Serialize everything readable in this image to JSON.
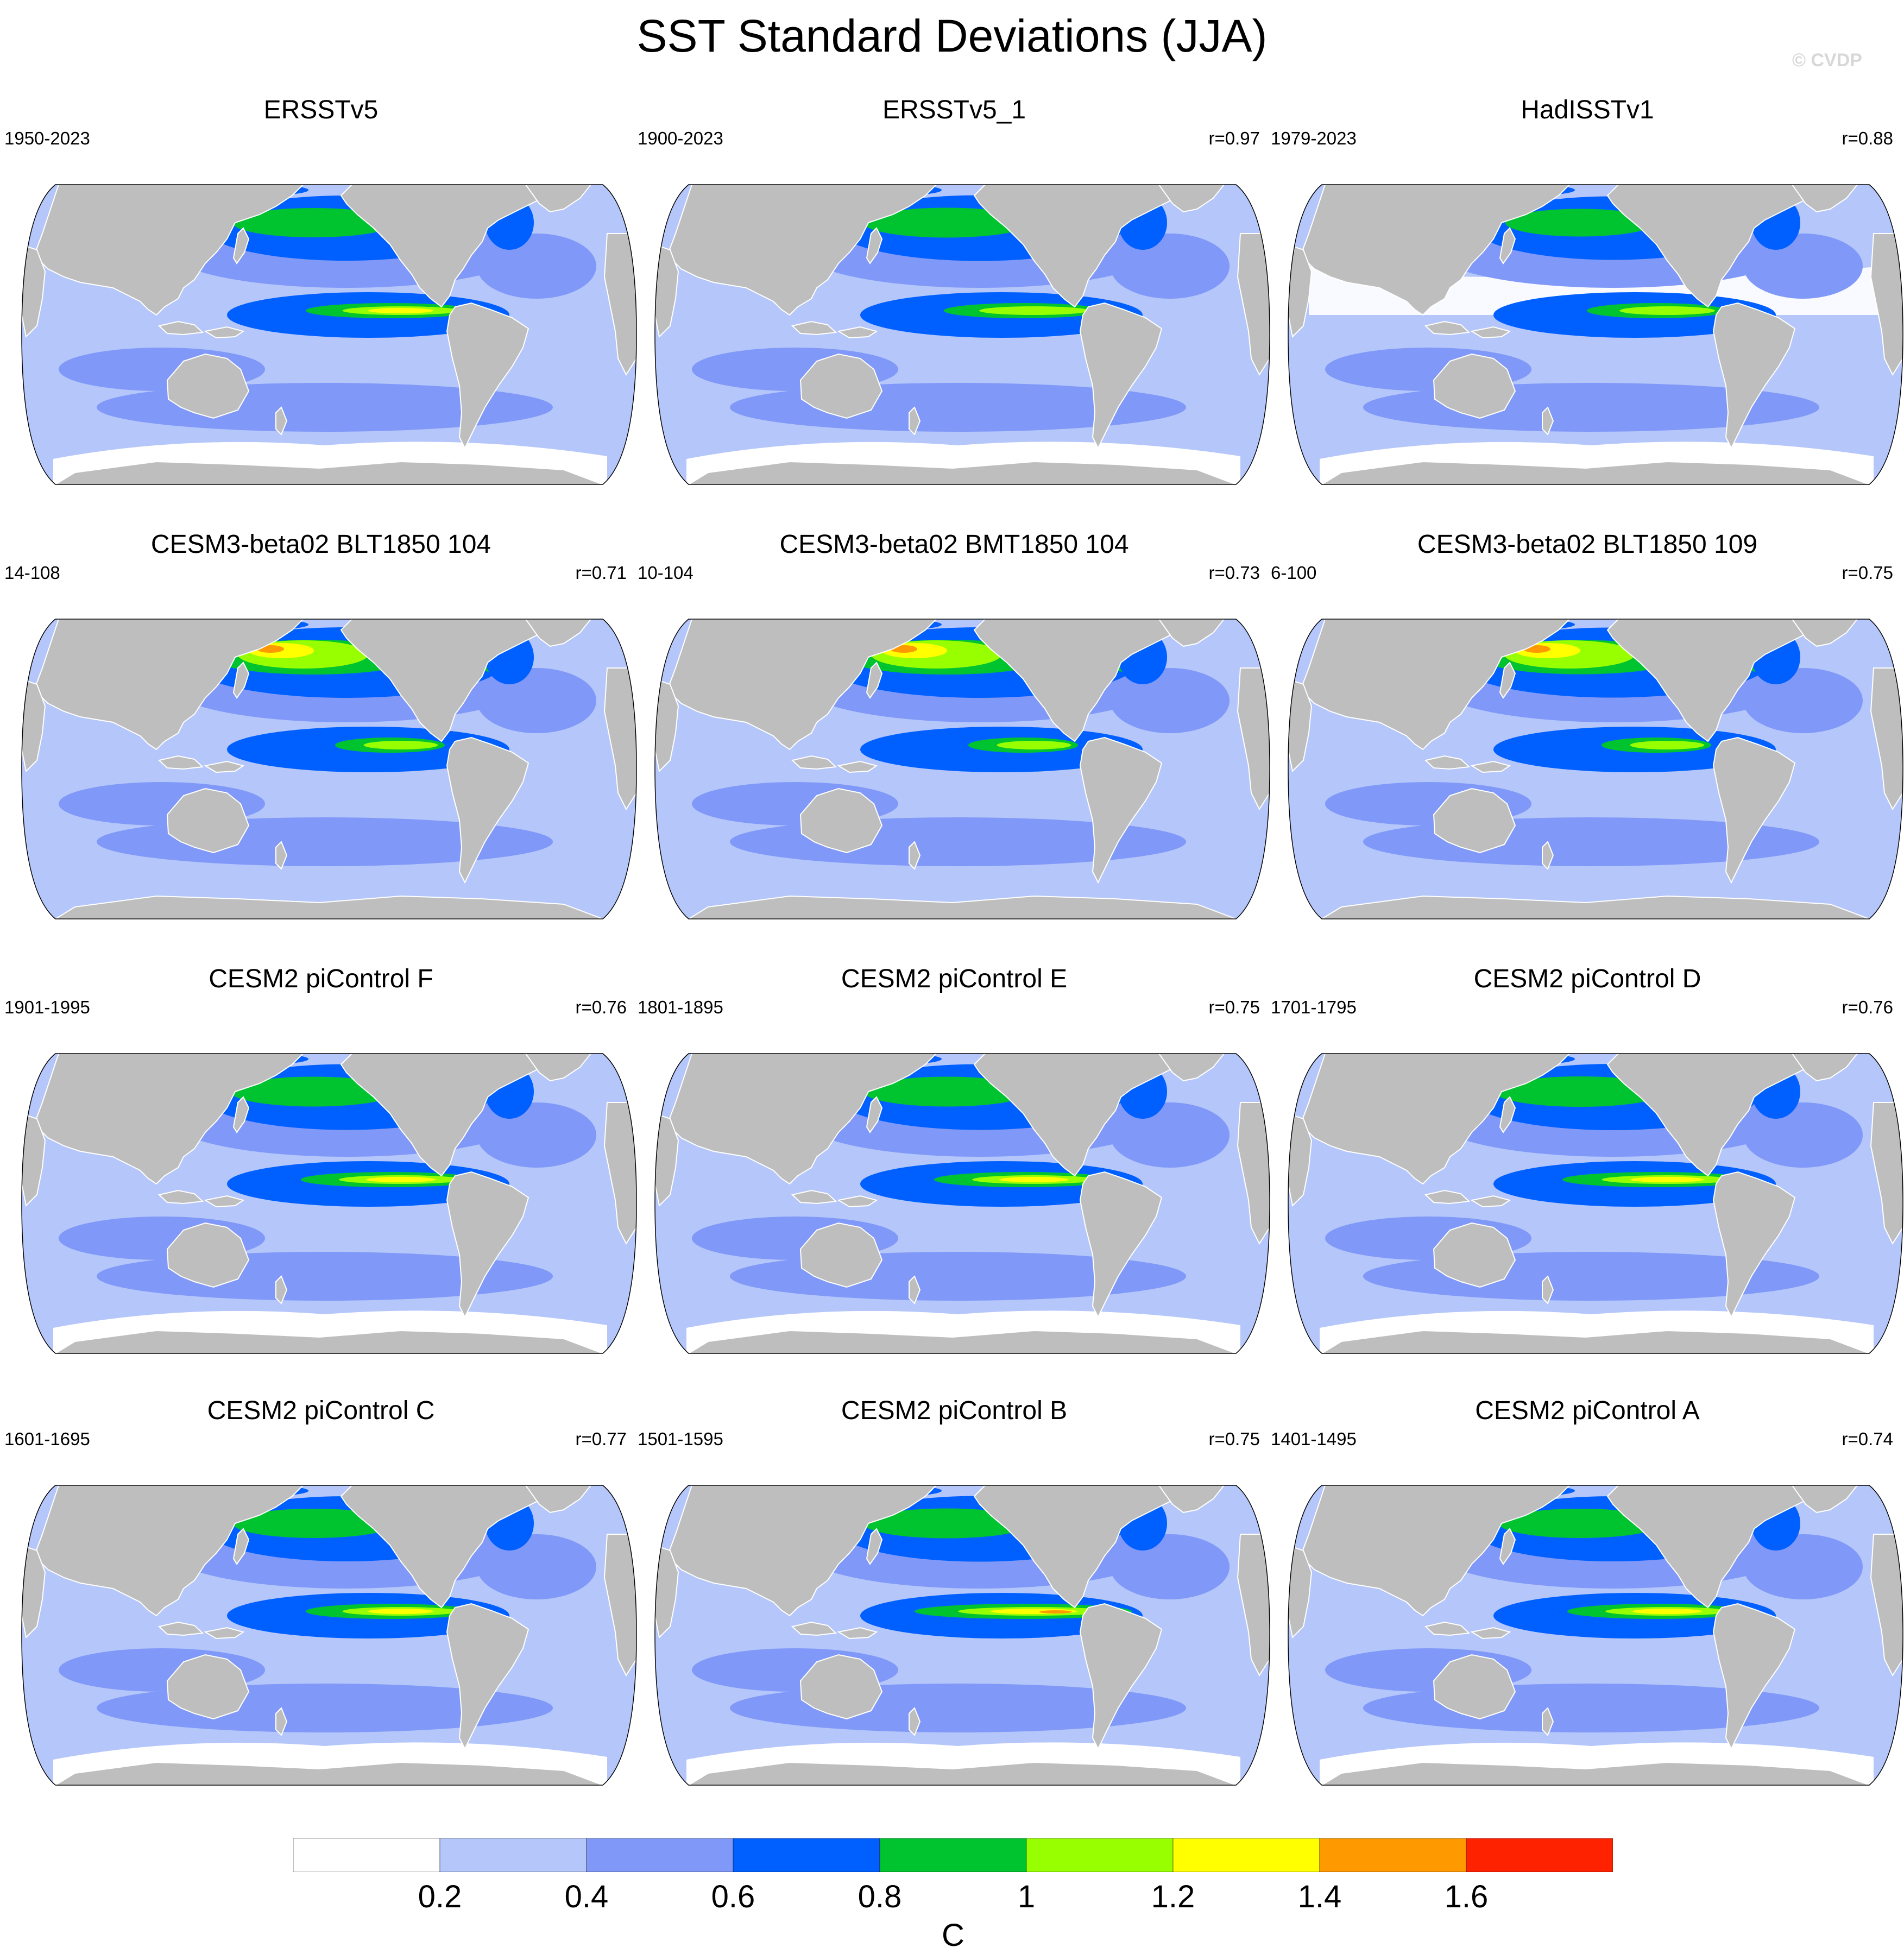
{
  "title": "SST Standard Deviations (JJA)",
  "watermark": "© CVDP",
  "colors": {
    "land": "#bebebe",
    "levels": [
      "#ffffff",
      "#b4c6fa",
      "#8098f8",
      "#0060ff",
      "#00c330",
      "#98ff00",
      "#ffff00",
      "#ff9900",
      "#ff2200"
    ]
  },
  "legend": {
    "ticks": [
      "0.2",
      "0.4",
      "0.6",
      "0.8",
      "1",
      "1.2",
      "1.4",
      "1.6"
    ],
    "unit": "C"
  },
  "panels": [
    {
      "title": "ERSSTv5",
      "period": "1950-2023",
      "r": "",
      "kind": "obs",
      "enso": 0.75,
      "npac": 0.5
    },
    {
      "title": "ERSSTv5_1",
      "period": "1900-2023",
      "r": "r=0.97",
      "kind": "obs",
      "enso": 0.7,
      "npac": 0.55
    },
    {
      "title": "HadISSTv1",
      "period": "1979-2023",
      "r": "r=0.88",
      "kind": "had",
      "enso": 0.6,
      "npac": 0.35
    },
    {
      "title": "CESM3-beta02 BLT1850 104",
      "period": "14-108",
      "r": "r=0.71",
      "kind": "cesm3",
      "enso": 0.45,
      "npac": 1.0
    },
    {
      "title": "CESM3-beta02 BMT1850 104",
      "period": "10-104",
      "r": "r=0.73",
      "kind": "cesm3",
      "enso": 0.45,
      "npac": 1.0
    },
    {
      "title": "CESM3-beta02 BLT1850 109",
      "period": "6-100",
      "r": "r=0.75",
      "kind": "cesm3",
      "enso": 0.45,
      "npac": 0.95
    },
    {
      "title": "CESM2 piControl F",
      "period": "1901-1995",
      "r": "r=0.76",
      "kind": "cesm2",
      "enso": 0.8,
      "npac": 0.55
    },
    {
      "title": "CESM2 piControl E",
      "period": "1801-1895",
      "r": "r=0.75",
      "kind": "cesm2",
      "enso": 0.8,
      "npac": 0.55
    },
    {
      "title": "CESM2 piControl D",
      "period": "1701-1795",
      "r": "r=0.76",
      "kind": "cesm2",
      "enso": 0.85,
      "npac": 0.6
    },
    {
      "title": "CESM2 piControl C",
      "period": "1601-1695",
      "r": "r=0.77",
      "kind": "cesm2",
      "enso": 0.75,
      "npac": 0.5
    },
    {
      "title": "CESM2 piControl B",
      "period": "1501-1595",
      "r": "r=0.75",
      "kind": "cesm2",
      "enso": 1.0,
      "npac": 0.55
    },
    {
      "title": "CESM2 piControl A",
      "period": "1401-1495",
      "r": "r=0.74",
      "kind": "cesm2",
      "enso": 0.8,
      "npac": 0.5
    }
  ]
}
